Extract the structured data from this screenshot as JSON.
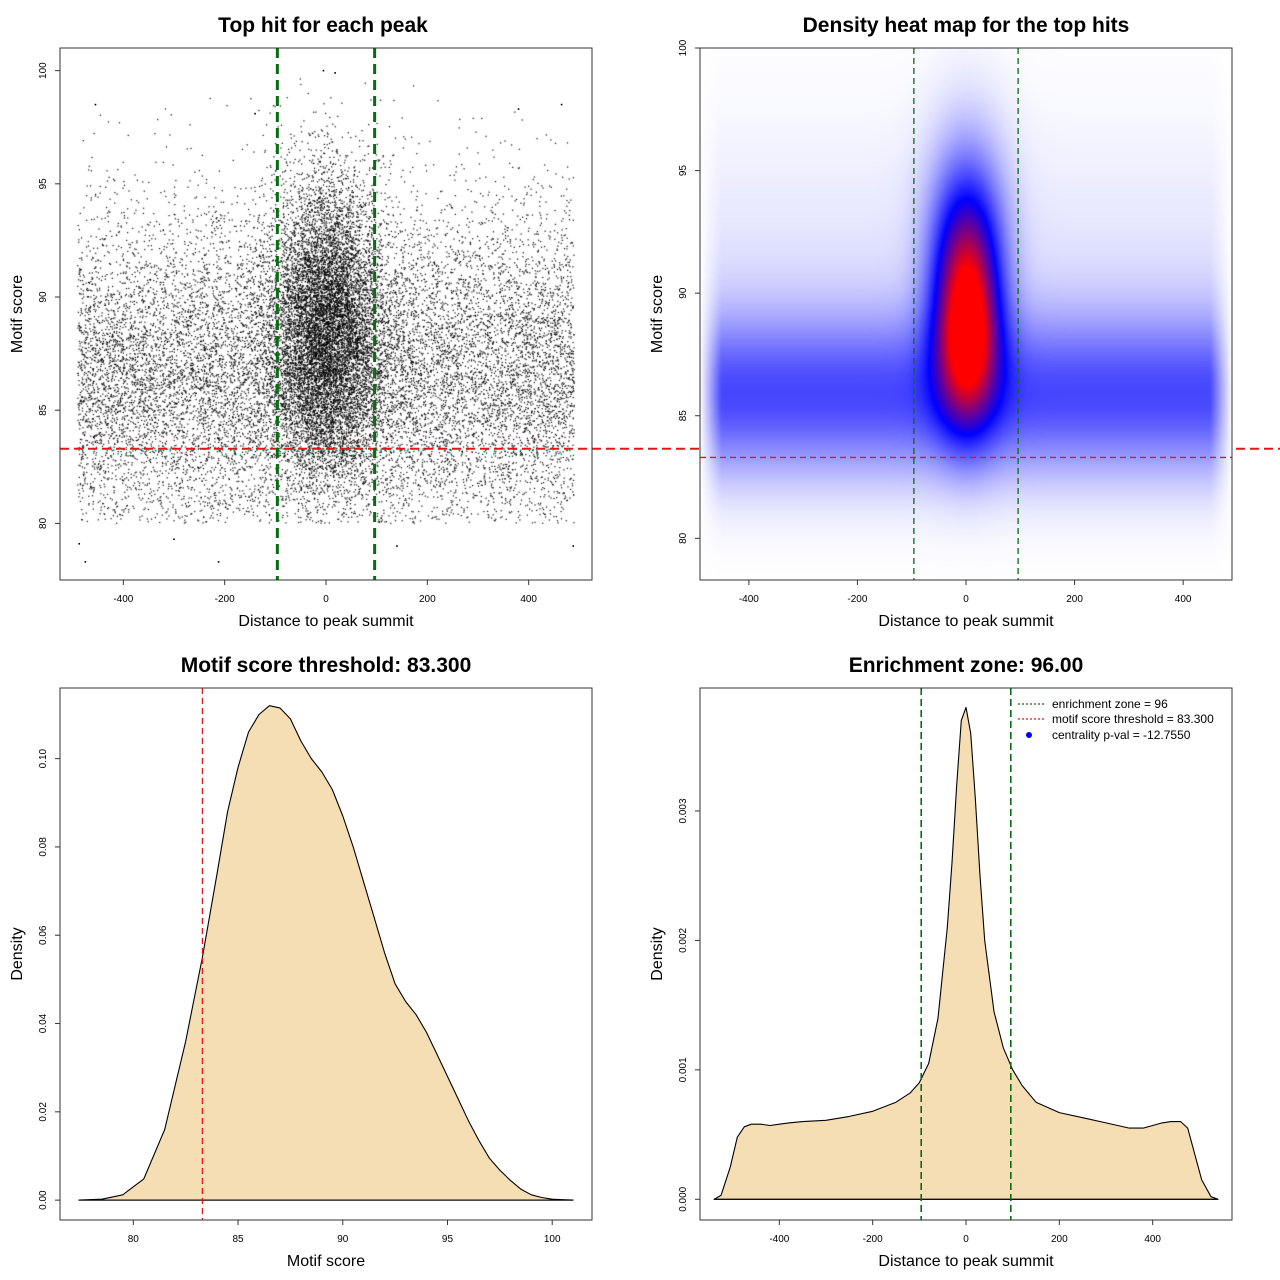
{
  "colors": {
    "threshold_line": "#e0161b",
    "zone_line": "#0a6b12",
    "density_fill": "#f5deb3",
    "heat_low": "#ffffff",
    "heat_mid": "#0000ff",
    "heat_high": "#ff0000",
    "legend_marker": "#0000ff"
  },
  "chart_data": [
    {
      "id": "scatter",
      "type": "scatter",
      "title": "Top hit for each peak",
      "xlabel": "Distance to peak summit",
      "ylabel": "Motif score",
      "xlim": [
        -525,
        525
      ],
      "ylim": [
        77.5,
        101
      ],
      "xticks": [
        -400,
        -200,
        0,
        200,
        400
      ],
      "yticks": [
        80,
        85,
        90,
        95,
        100
      ],
      "x_range": [
        -490,
        490
      ],
      "points": [
        {
          "x": -475,
          "y": 78.3
        },
        {
          "x": -212,
          "y": 78.3
        },
        {
          "x": -5,
          "y": 100.0
        },
        {
          "x": 18,
          "y": 99.9
        },
        {
          "x": -455,
          "y": 98.5
        },
        {
          "x": 465,
          "y": 98.5
        },
        {
          "x": -140,
          "y": 98.1
        },
        {
          "x": 380,
          "y": 98.3
        },
        {
          "x": -487,
          "y": 79.1
        },
        {
          "x": 488,
          "y": 79.0
        },
        {
          "x": 140,
          "y": 79.0
        },
        {
          "x": -300,
          "y": 79.3
        }
      ],
      "point_cloud": {
        "n_background": 14000,
        "n_central": 9000,
        "central_center": 0,
        "central_sd": 55,
        "score_mode": 86.5,
        "score_sd": 3.4
      },
      "hlines": [
        {
          "y": 83.3,
          "style": "dashed",
          "color_key": "threshold_line"
        }
      ],
      "vlines": [
        {
          "x": -96,
          "style": "dashed",
          "color_key": "zone_line"
        },
        {
          "x": 96,
          "style": "dashed",
          "color_key": "zone_line"
        }
      ]
    },
    {
      "id": "heatmap",
      "type": "heatmap",
      "title": "Density heat map for the top hits",
      "xlabel": "Distance to peak summit",
      "ylabel": "Motif score",
      "xlim": [
        -490,
        490
      ],
      "ylim": [
        78.3,
        100
      ],
      "xticks": [
        -400,
        -200,
        0,
        200,
        400
      ],
      "yticks": [
        80,
        85,
        90,
        95,
        100
      ],
      "density_peak": {
        "x": 2,
        "y": 89.7
      },
      "hlines": [
        {
          "y": 83.3,
          "style": "dashed",
          "color_key": "threshold_line"
        }
      ],
      "vlines": [
        {
          "x": -96,
          "style": "dashed",
          "color_key": "zone_line"
        },
        {
          "x": 96,
          "style": "dashed",
          "color_key": "zone_line"
        }
      ]
    },
    {
      "id": "score_density",
      "type": "area",
      "title": "Motif score threshold: 83.300",
      "xlabel": "Motif score",
      "ylabel": "Density",
      "xlim": [
        76.5,
        101.9
      ],
      "ylim": [
        -0.0045,
        0.116
      ],
      "xticks": [
        80,
        85,
        90,
        95,
        100
      ],
      "yticks": [
        0.0,
        0.02,
        0.04,
        0.06,
        0.08,
        0.1
      ],
      "ytick_labels": [
        "0.00",
        "0.02",
        "0.04",
        "0.06",
        "0.08",
        "0.10"
      ],
      "x": [
        77.4,
        78.5,
        79.5,
        80.5,
        81.5,
        82.5,
        83.3,
        84.0,
        84.5,
        85.0,
        85.5,
        86.0,
        86.5,
        87.0,
        87.5,
        88.0,
        88.5,
        89.0,
        89.5,
        90.0,
        90.5,
        91.0,
        91.5,
        92.0,
        92.5,
        93.0,
        93.5,
        94.0,
        94.5,
        95.0,
        95.5,
        96.0,
        96.5,
        97.0,
        97.5,
        98.0,
        98.5,
        99.0,
        99.5,
        100.0,
        100.5,
        101.0
      ],
      "y": [
        0.0,
        0.0002,
        0.0012,
        0.0048,
        0.016,
        0.036,
        0.055,
        0.074,
        0.088,
        0.098,
        0.106,
        0.11,
        0.112,
        0.1115,
        0.109,
        0.104,
        0.1,
        0.097,
        0.093,
        0.087,
        0.08,
        0.072,
        0.064,
        0.056,
        0.049,
        0.045,
        0.042,
        0.038,
        0.033,
        0.028,
        0.023,
        0.018,
        0.0135,
        0.0095,
        0.0068,
        0.0045,
        0.0025,
        0.0012,
        0.0006,
        0.0002,
        0.0001,
        0.0
      ],
      "vlines": [
        {
          "x": 83.3,
          "style": "dashed",
          "color_key": "threshold_line"
        }
      ]
    },
    {
      "id": "distance_density",
      "type": "area",
      "title": "Enrichment zone: 96.00",
      "xlabel": "Distance to peak summit",
      "ylabel": "Density",
      "xlim": [
        -570,
        570
      ],
      "ylim": [
        -0.00016,
        0.00395
      ],
      "xticks": [
        -400,
        -200,
        0,
        200,
        400
      ],
      "yticks": [
        0.0,
        0.001,
        0.002,
        0.003
      ],
      "ytick_labels": [
        "0.000",
        "0.001",
        "0.002",
        "0.003"
      ],
      "x": [
        -540,
        -525,
        -505,
        -490,
        -475,
        -460,
        -440,
        -420,
        -400,
        -380,
        -350,
        -300,
        -250,
        -200,
        -150,
        -120,
        -100,
        -80,
        -60,
        -40,
        -30,
        -20,
        -10,
        0,
        10,
        20,
        30,
        40,
        60,
        80,
        100,
        120,
        150,
        200,
        250,
        300,
        350,
        380,
        400,
        420,
        440,
        460,
        475,
        490,
        505,
        525,
        540
      ],
      "y": [
        0.0,
        3e-05,
        0.00025,
        0.00048,
        0.00056,
        0.00058,
        0.00058,
        0.00057,
        0.00058,
        0.00059,
        0.0006,
        0.00061,
        0.00064,
        0.00068,
        0.00075,
        0.00082,
        0.0009,
        0.00105,
        0.0014,
        0.0021,
        0.0026,
        0.0032,
        0.0037,
        0.0038,
        0.0036,
        0.0031,
        0.0025,
        0.002,
        0.00145,
        0.00117,
        0.001,
        0.00088,
        0.00075,
        0.00067,
        0.00063,
        0.00059,
        0.00055,
        0.00055,
        0.00057,
        0.00059,
        0.0006,
        0.0006,
        0.00055,
        0.00035,
        0.00015,
        2e-05,
        0.0
      ],
      "vlines": [
        {
          "x": -96,
          "style": "dashed",
          "color_key": "zone_line"
        },
        {
          "x": 96,
          "style": "dashed",
          "color_key": "zone_line"
        }
      ],
      "legend": {
        "position": "top-right",
        "entries": [
          {
            "label": "enrichment zone = 96",
            "kind": "line",
            "style": "dotted",
            "color_key": "zone_line"
          },
          {
            "label": "motif score threshold = 83.300",
            "kind": "line",
            "style": "dotted",
            "color_key": "threshold_line"
          },
          {
            "label": "centrality p-val = -12.7550",
            "kind": "point",
            "color_key": "legend_marker"
          }
        ]
      }
    }
  ]
}
